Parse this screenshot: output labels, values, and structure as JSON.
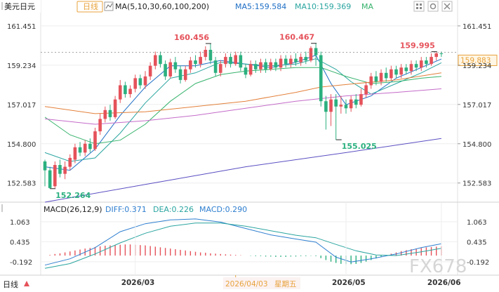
{
  "header": {
    "symbol": "美元日元",
    "period": "日线",
    "ma_label": "MA(5,10,30,60,100,200)",
    "ma5": "MA5:159.584",
    "ma10": "MA10:159.369",
    "ma_extra": "MA"
  },
  "macd_header": {
    "label": "MACD(26,12,9)",
    "diff": "DIFF:0.371",
    "dea": "DEA:0.226",
    "macd": "MACD:0.290"
  },
  "footer": {
    "period_tab": "日线",
    "cursor_date": "2026/04/03",
    "cursor_weekday": "星期五",
    "watermark": "FX678"
  },
  "colors": {
    "up": "#e5525a",
    "down": "#2bb07f",
    "ma5": "#1f6fc5",
    "ma10": "#2aa5a0",
    "ma30": "#37b36c",
    "ma60": "#e3803a",
    "ma100": "#c46bc9",
    "ma200": "#5a4fc2",
    "diff": "#2f7fd0",
    "dea": "#2aa5a0",
    "accent": "#e8a33c"
  },
  "chart_data": {
    "type": "candlestick",
    "price_axis": {
      "ylim": [
        151.7,
        162.2
      ],
      "ticks": [
        "161.451",
        "159.234",
        "157.017",
        "154.800",
        "152.583"
      ],
      "tick_values": [
        161.451,
        159.234,
        157.017,
        154.8,
        152.583
      ]
    },
    "last_price": "159.883",
    "last_price_value": 159.883,
    "annotations": [
      {
        "text": "160.456",
        "index": 33,
        "value": 160.456,
        "kind": "high"
      },
      {
        "text": "160.467",
        "index": 54,
        "value": 160.467,
        "kind": "high"
      },
      {
        "text": "159.995",
        "index": 78,
        "value": 159.995,
        "kind": "high"
      },
      {
        "text": "152.264",
        "index": 1,
        "value": 152.264,
        "kind": "low"
      },
      {
        "text": "155.025",
        "index": 58,
        "value": 155.025,
        "kind": "low"
      }
    ],
    "candles": [
      [
        153.8,
        153.3,
        153.9,
        152.4
      ],
      [
        153.3,
        152.3,
        153.5,
        152.264
      ],
      [
        152.4,
        153.6,
        153.8,
        152.3
      ],
      [
        153.6,
        153.1,
        153.9,
        152.9
      ],
      [
        153.1,
        153.5,
        153.8,
        152.8
      ],
      [
        153.5,
        154.0,
        154.2,
        153.3
      ],
      [
        153.9,
        154.6,
        154.8,
        153.7
      ],
      [
        154.6,
        154.3,
        154.9,
        154.1
      ],
      [
        154.3,
        154.8,
        155.0,
        154.1
      ],
      [
        154.8,
        154.5,
        155.1,
        154.3
      ],
      [
        154.5,
        155.5,
        155.7,
        154.4
      ],
      [
        155.5,
        156.2,
        156.5,
        155.3
      ],
      [
        156.2,
        156.7,
        156.9,
        156.0
      ],
      [
        156.7,
        156.3,
        157.0,
        156.1
      ],
      [
        156.3,
        157.3,
        157.5,
        156.2
      ],
      [
        157.3,
        158.1,
        158.4,
        157.1
      ],
      [
        158.1,
        157.6,
        158.3,
        157.4
      ],
      [
        157.6,
        157.9,
        158.1,
        157.4
      ],
      [
        157.9,
        158.5,
        158.7,
        157.7
      ],
      [
        158.5,
        158.1,
        158.7,
        157.9
      ],
      [
        158.1,
        158.6,
        158.9,
        157.9
      ],
      [
        158.6,
        159.2,
        159.4,
        158.4
      ],
      [
        159.2,
        159.8,
        160.0,
        159.0
      ],
      [
        159.8,
        159.3,
        160.0,
        159.1
      ],
      [
        159.3,
        158.6,
        159.5,
        158.4
      ],
      [
        158.6,
        159.4,
        159.6,
        158.5
      ],
      [
        159.4,
        159.0,
        159.7,
        158.8
      ],
      [
        159.0,
        158.4,
        159.2,
        158.2
      ],
      [
        158.4,
        159.0,
        159.2,
        158.3
      ],
      [
        159.0,
        159.5,
        159.7,
        158.8
      ],
      [
        159.5,
        159.3,
        159.8,
        159.1
      ],
      [
        159.3,
        159.7,
        160.0,
        159.1
      ],
      [
        159.7,
        160.1,
        160.3,
        159.5
      ],
      [
        160.1,
        159.5,
        160.456,
        159.3
      ],
      [
        159.5,
        158.8,
        159.7,
        158.6
      ],
      [
        158.8,
        159.3,
        159.5,
        158.6
      ],
      [
        159.3,
        159.7,
        159.9,
        159.1
      ],
      [
        159.7,
        159.3,
        159.9,
        159.1
      ],
      [
        159.3,
        159.8,
        160.0,
        159.2
      ],
      [
        159.8,
        159.1,
        160.0,
        158.9
      ],
      [
        159.1,
        158.7,
        159.3,
        158.5
      ],
      [
        158.7,
        159.3,
        159.5,
        158.6
      ],
      [
        159.3,
        159.0,
        159.5,
        158.8
      ],
      [
        159.0,
        159.4,
        159.6,
        158.8
      ],
      [
        159.4,
        159.0,
        159.6,
        158.8
      ],
      [
        159.0,
        159.4,
        159.6,
        158.9
      ],
      [
        159.4,
        159.1,
        159.6,
        158.9
      ],
      [
        159.1,
        159.6,
        159.8,
        158.9
      ],
      [
        159.6,
        159.3,
        159.8,
        159.1
      ],
      [
        159.3,
        159.6,
        159.8,
        159.1
      ],
      [
        159.6,
        159.4,
        159.9,
        159.2
      ],
      [
        159.4,
        159.7,
        159.9,
        159.2
      ],
      [
        159.7,
        159.5,
        160.0,
        159.3
      ],
      [
        159.5,
        160.2,
        160.3,
        159.4
      ],
      [
        160.2,
        159.8,
        160.467,
        159.2
      ],
      [
        159.8,
        157.2,
        160.0,
        156.9
      ],
      [
        157.2,
        156.6,
        157.5,
        155.6
      ],
      [
        156.6,
        157.3,
        157.6,
        155.8
      ],
      [
        157.3,
        156.9,
        157.6,
        155.025
      ],
      [
        156.9,
        157.0,
        157.5,
        156.5
      ],
      [
        157.0,
        156.8,
        157.3,
        156.5
      ],
      [
        156.8,
        157.3,
        157.5,
        156.6
      ],
      [
        157.3,
        157.0,
        157.6,
        156.8
      ],
      [
        157.0,
        157.6,
        157.9,
        156.9
      ],
      [
        157.6,
        158.1,
        158.3,
        157.4
      ],
      [
        158.1,
        158.6,
        158.8,
        157.9
      ],
      [
        158.6,
        158.3,
        158.9,
        158.1
      ],
      [
        158.3,
        158.8,
        159.0,
        158.1
      ],
      [
        158.8,
        158.5,
        159.1,
        158.3
      ],
      [
        158.5,
        159.0,
        159.2,
        158.4
      ],
      [
        159.0,
        158.7,
        159.2,
        158.5
      ],
      [
        158.7,
        159.1,
        159.3,
        158.5
      ],
      [
        159.1,
        158.9,
        159.3,
        158.7
      ],
      [
        158.9,
        159.3,
        159.5,
        158.7
      ],
      [
        159.3,
        159.1,
        159.5,
        158.9
      ],
      [
        159.1,
        159.5,
        159.7,
        158.9
      ],
      [
        159.5,
        159.3,
        159.7,
        159.1
      ],
      [
        159.3,
        159.7,
        159.9,
        159.2
      ],
      [
        159.7,
        159.9,
        159.995,
        159.5
      ],
      [
        159.9,
        159.883,
        160.0,
        159.7
      ]
    ],
    "moving_averages": [
      {
        "name": "MA5",
        "color_key": "ma5",
        "points": [
          [
            0,
            153.5
          ],
          [
            5,
            153.3
          ],
          [
            10,
            154.5
          ],
          [
            15,
            156.4
          ],
          [
            20,
            158.0
          ],
          [
            25,
            159.2
          ],
          [
            30,
            159.2
          ],
          [
            35,
            159.5
          ],
          [
            40,
            159.3
          ],
          [
            45,
            159.1
          ],
          [
            50,
            159.4
          ],
          [
            54,
            159.8
          ],
          [
            57,
            158.2
          ],
          [
            60,
            157.0
          ],
          [
            65,
            157.5
          ],
          [
            70,
            158.5
          ],
          [
            75,
            159.1
          ],
          [
            79,
            159.58
          ]
        ]
      },
      {
        "name": "MA10",
        "color_key": "ma10",
        "points": [
          [
            0,
            154.3
          ],
          [
            5,
            153.8
          ],
          [
            10,
            154.0
          ],
          [
            15,
            155.4
          ],
          [
            20,
            157.1
          ],
          [
            25,
            158.5
          ],
          [
            30,
            158.8
          ],
          [
            35,
            159.4
          ],
          [
            40,
            159.3
          ],
          [
            45,
            159.2
          ],
          [
            50,
            159.3
          ],
          [
            54,
            159.6
          ],
          [
            58,
            159.0
          ],
          [
            61,
            158.3
          ],
          [
            65,
            157.6
          ],
          [
            70,
            158.2
          ],
          [
            75,
            158.8
          ],
          [
            79,
            159.37
          ]
        ]
      },
      {
        "name": "MA30",
        "color_key": "ma30",
        "points": [
          [
            0,
            156.3
          ],
          [
            5,
            155.3
          ],
          [
            10,
            154.8
          ],
          [
            15,
            155.0
          ],
          [
            20,
            155.9
          ],
          [
            25,
            157.2
          ],
          [
            30,
            158.2
          ],
          [
            35,
            158.7
          ],
          [
            40,
            158.9
          ],
          [
            45,
            159.0
          ],
          [
            50,
            159.1
          ],
          [
            55,
            159.1
          ],
          [
            60,
            158.6
          ],
          [
            65,
            158.2
          ],
          [
            70,
            158.3
          ],
          [
            75,
            158.5
          ],
          [
            79,
            158.6
          ]
        ]
      },
      {
        "name": "MA60",
        "color_key": "ma60",
        "points": [
          [
            0,
            156.9
          ],
          [
            10,
            156.5
          ],
          [
            20,
            156.6
          ],
          [
            30,
            156.9
          ],
          [
            40,
            157.2
          ],
          [
            50,
            157.7
          ],
          [
            55,
            158.0
          ],
          [
            62,
            158.2
          ],
          [
            70,
            158.4
          ],
          [
            79,
            158.8
          ]
        ]
      },
      {
        "name": "MA100",
        "color_key": "ma100",
        "points": [
          [
            0,
            156.2
          ],
          [
            10,
            155.9
          ],
          [
            20,
            156.1
          ],
          [
            30,
            156.4
          ],
          [
            40,
            156.8
          ],
          [
            50,
            157.2
          ],
          [
            60,
            157.5
          ],
          [
            70,
            157.7
          ],
          [
            79,
            157.9
          ]
        ]
      },
      {
        "name": "MA200",
        "color_key": "ma200",
        "points": [
          [
            0,
            151.5
          ],
          [
            20,
            152.5
          ],
          [
            40,
            153.5
          ],
          [
            60,
            154.3
          ],
          [
            79,
            155.1
          ]
        ]
      }
    ],
    "macd_axis": {
      "ylim": [
        -0.46,
        1.28
      ],
      "ticks": [
        "1.063",
        "0.435",
        "-0.192"
      ],
      "tick_values": [
        1.063,
        0.435,
        -0.192
      ]
    },
    "macd_hist": [
      0.0,
      0.02,
      0.05,
      0.07,
      0.1,
      0.13,
      0.16,
      0.19,
      0.22,
      0.24,
      0.27,
      0.29,
      0.31,
      0.32,
      0.33,
      0.34,
      0.35,
      0.35,
      0.34,
      0.33,
      0.32,
      0.3,
      0.28,
      0.26,
      0.24,
      0.22,
      0.2,
      0.18,
      0.16,
      0.14,
      0.12,
      0.1,
      0.09,
      0.07,
      0.06,
      0.05,
      0.04,
      0.03,
      0.02,
      0.01,
      0.0,
      -0.01,
      -0.02,
      -0.02,
      -0.03,
      -0.03,
      -0.04,
      -0.04,
      -0.04,
      -0.03,
      -0.03,
      -0.02,
      -0.02,
      -0.01,
      -0.02,
      -0.08,
      -0.14,
      -0.19,
      -0.23,
      -0.26,
      -0.27,
      -0.27,
      -0.26,
      -0.23,
      -0.19,
      -0.14,
      -0.09,
      -0.04,
      0.01,
      0.06,
      0.1,
      0.14,
      0.17,
      0.2,
      0.22,
      0.24,
      0.26,
      0.27,
      0.28,
      0.29
    ],
    "macd_diff": [
      [
        0,
        -0.3
      ],
      [
        5,
        -0.1
      ],
      [
        10,
        0.25
      ],
      [
        15,
        0.75
      ],
      [
        20,
        1.0
      ],
      [
        25,
        1.12
      ],
      [
        30,
        1.15
      ],
      [
        35,
        1.05
      ],
      [
        40,
        0.85
      ],
      [
        45,
        0.65
      ],
      [
        50,
        0.52
      ],
      [
        54,
        0.42
      ],
      [
        58,
        -0.05
      ],
      [
        61,
        -0.2
      ],
      [
        65,
        -0.1
      ],
      [
        70,
        0.05
      ],
      [
        75,
        0.25
      ],
      [
        79,
        0.37
      ]
    ],
    "macd_dea": [
      [
        0,
        -0.4
      ],
      [
        5,
        -0.25
      ],
      [
        10,
        0.05
      ],
      [
        15,
        0.4
      ],
      [
        20,
        0.7
      ],
      [
        25,
        0.92
      ],
      [
        30,
        1.02
      ],
      [
        35,
        1.02
      ],
      [
        40,
        0.92
      ],
      [
        45,
        0.78
      ],
      [
        50,
        0.64
      ],
      [
        54,
        0.56
      ],
      [
        58,
        0.35
      ],
      [
        62,
        0.15
      ],
      [
        66,
        0.02
      ],
      [
        70,
        0.0
      ],
      [
        75,
        0.12
      ],
      [
        79,
        0.23
      ]
    ],
    "x_ticks": [
      {
        "text": "2026/03",
        "index": 18
      },
      {
        "text": "2026/05",
        "index": 60
      },
      {
        "text": "2026/06",
        "index": 79
      }
    ],
    "cursor_index": 38
  }
}
